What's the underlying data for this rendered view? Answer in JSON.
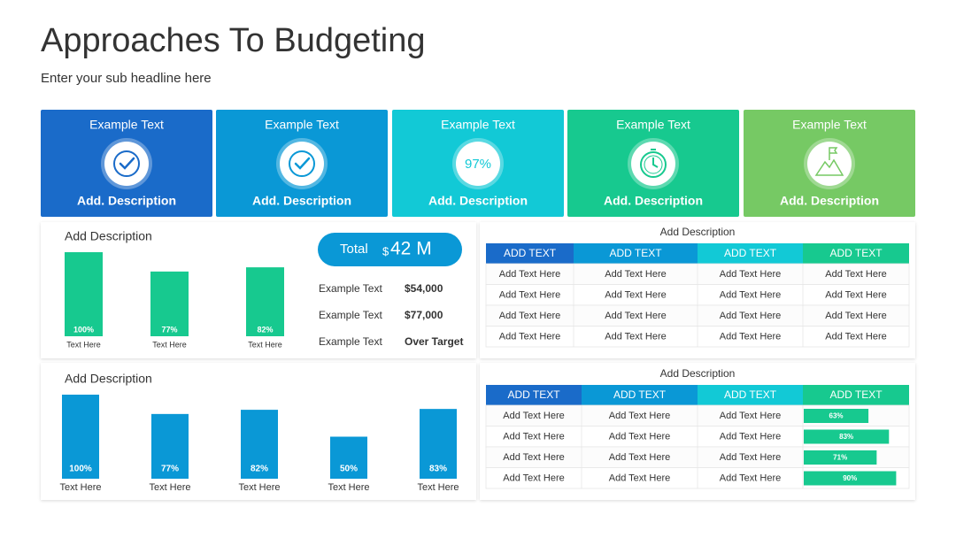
{
  "header": {
    "title": "Approaches To Budgeting",
    "subtitle": "Enter your sub headline here"
  },
  "cards": [
    {
      "title": "Example Text",
      "description": "Add. Description",
      "color": "#1a6bc9"
    },
    {
      "title": "Example Text",
      "description": "Add. Description",
      "color": "#0a98d6"
    },
    {
      "title": "Example Text",
      "description": "Add. Description",
      "color": "#12c9d6",
      "badge": "97%"
    },
    {
      "title": "Example Text",
      "description": "Add. Description",
      "color": "#17c98f"
    },
    {
      "title": "Example Text",
      "description": "Add. Description",
      "color": "#76c964"
    }
  ],
  "chart_data": [
    {
      "type": "bar",
      "title": "Add Description",
      "categories": [
        "Text Here",
        "Text Here",
        "Text Here"
      ],
      "values": [
        100,
        77,
        82
      ],
      "value_labels": [
        "100%",
        "77%",
        "82%"
      ],
      "color": "#17c98f"
    },
    {
      "type": "bar",
      "title": "Add Description",
      "categories": [
        "Text Here",
        "Text Here",
        "Text Here",
        "Text Here",
        "Text Here"
      ],
      "values": [
        100,
        77,
        82,
        50,
        83
      ],
      "value_labels": [
        "100%",
        "77%",
        "82%",
        "50%",
        "83%"
      ],
      "color": "#0a98d6"
    }
  ],
  "summary": {
    "total_label": "Total",
    "currency": "$",
    "amount": "42 M",
    "rows": [
      [
        "Example Text",
        "$54,000"
      ],
      [
        "Example Text",
        "$77,000"
      ],
      [
        "Example Text",
        "Over Target"
      ]
    ]
  },
  "table1": {
    "title": "Add Description",
    "header": [
      "ADD TEXT",
      "ADD TEXT",
      "ADD TEXT",
      "ADD TEXT"
    ],
    "header_colors": [
      "#1a6bc9",
      "#0a98d6",
      "#12c9d6",
      "#17c98f"
    ],
    "rows": [
      [
        "Add Text Here",
        "Add Text Here",
        "Add Text Here",
        "Add Text Here"
      ],
      [
        "Add Text Here",
        "Add Text Here",
        "Add Text Here",
        "Add Text Here"
      ],
      [
        "Add Text Here",
        "Add Text Here",
        "Add Text Here",
        "Add Text Here"
      ],
      [
        "Add Text Here",
        "Add Text Here",
        "Add Text Here",
        "Add Text Here"
      ]
    ]
  },
  "table2": {
    "title": "Add Description",
    "header": [
      "ADD TEXT",
      "ADD TEXT",
      "ADD TEXT",
      "ADD TEXT"
    ],
    "header_colors": [
      "#1a6bc9",
      "#0a98d6",
      "#12c9d6",
      "#17c98f"
    ],
    "rows": [
      [
        "Add Text Here",
        "Add Text Here",
        "Add Text Here"
      ],
      [
        "Add Text Here",
        "Add Text Here",
        "Add Text Here"
      ],
      [
        "Add Text Here",
        "Add Text Here",
        "Add Text Here"
      ],
      [
        "Add Text Here",
        "Add Text Here",
        "Add Text Here"
      ]
    ],
    "progress": {
      "values": [
        63,
        83,
        71,
        90
      ],
      "value_labels": [
        "63%",
        "83%",
        "71%",
        "90%"
      ],
      "color": "#17c98f"
    }
  }
}
